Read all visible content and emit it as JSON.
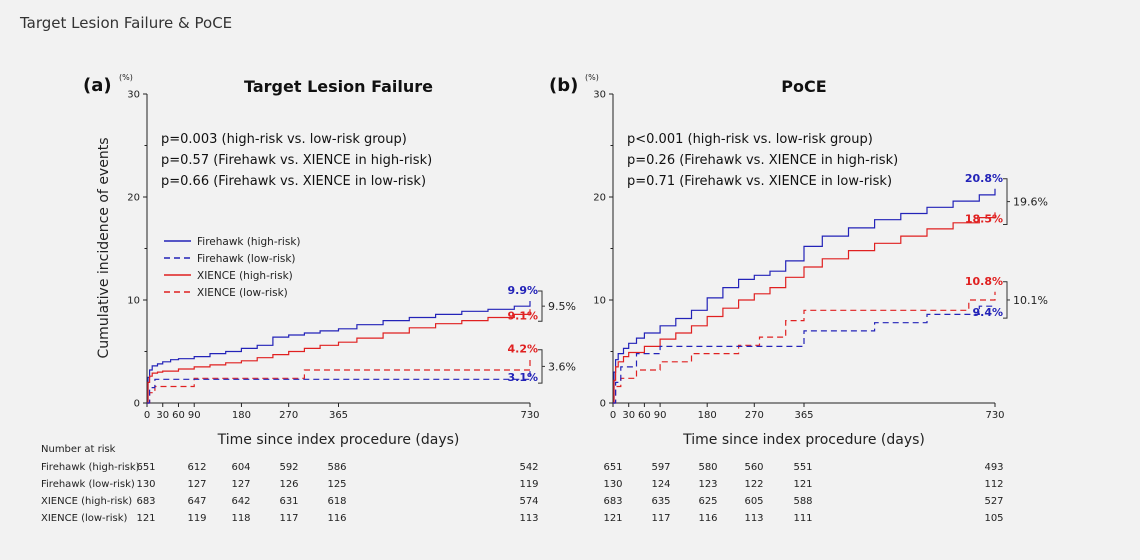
{
  "page_title": "Target Lesion Failure & PoCE",
  "colors": {
    "blue": "#2323b8",
    "red": "#e02020",
    "axis": "#222222"
  },
  "shared": {
    "xlabel": "Time since index procedure (days)",
    "ylabel": "Cumulative incidence of events",
    "yunit": "(%)",
    "x_ticks": [
      0,
      30,
      60,
      90,
      180,
      270,
      365,
      730
    ],
    "y_ticks": [
      0,
      10,
      20,
      30
    ],
    "legend": [
      {
        "name": "Firehawk (high-risk)",
        "color": "#2323b8",
        "dash": false
      },
      {
        "name": "Firehawk (low-risk)",
        "color": "#2323b8",
        "dash": true
      },
      {
        "name": "XIENCE (high-risk)",
        "color": "#e02020",
        "dash": false
      },
      {
        "name": "XIENCE (low-risk)",
        "color": "#e02020",
        "dash": true
      }
    ]
  },
  "chart_data": [
    {
      "type": "line",
      "panel": "(a)",
      "title": "Target Lesion Failure",
      "xlim": [
        0,
        730
      ],
      "ylim": [
        0,
        30
      ],
      "pvalues": [
        "p=0.003 (high-risk vs. low-risk group)",
        "p=0.57 (Firehawk vs. XIENCE in high-risk)",
        "p=0.66 (Firehawk vs. XIENCE in low-risk)"
      ],
      "series": [
        {
          "name": "Firehawk (high-risk)",
          "color": "#2323b8",
          "dash": false,
          "x": [
            0,
            2,
            5,
            10,
            20,
            30,
            45,
            60,
            90,
            120,
            150,
            180,
            210,
            240,
            270,
            300,
            330,
            365,
            400,
            450,
            500,
            550,
            600,
            650,
            700,
            730
          ],
          "y": [
            0,
            2.5,
            3.2,
            3.6,
            3.8,
            4.0,
            4.2,
            4.3,
            4.5,
            4.8,
            5.0,
            5.3,
            5.6,
            6.4,
            6.6,
            6.8,
            7.0,
            7.2,
            7.6,
            8.0,
            8.3,
            8.6,
            8.9,
            9.1,
            9.4,
            9.9
          ]
        },
        {
          "name": "XIENCE (high-risk)",
          "color": "#e02020",
          "dash": false,
          "x": [
            0,
            2,
            5,
            10,
            20,
            30,
            60,
            90,
            120,
            150,
            180,
            210,
            240,
            270,
            300,
            330,
            365,
            400,
            450,
            500,
            550,
            600,
            650,
            700,
            730
          ],
          "y": [
            0,
            2.0,
            2.6,
            2.9,
            3.0,
            3.1,
            3.3,
            3.5,
            3.7,
            3.9,
            4.1,
            4.4,
            4.7,
            5.0,
            5.3,
            5.6,
            5.9,
            6.3,
            6.8,
            7.3,
            7.7,
            8.0,
            8.3,
            8.6,
            9.1
          ]
        },
        {
          "name": "XIENCE (low-risk)",
          "color": "#e02020",
          "dash": true,
          "x": [
            0,
            5,
            15,
            60,
            90,
            150,
            270,
            300,
            500,
            700,
            730
          ],
          "y": [
            0,
            1.0,
            1.6,
            1.6,
            2.4,
            2.4,
            2.4,
            3.2,
            3.2,
            3.2,
            4.2
          ]
        },
        {
          "name": "Firehawk (low-risk)",
          "color": "#2323b8",
          "dash": true,
          "x": [
            0,
            5,
            15,
            90,
            180,
            270,
            700,
            730
          ],
          "y": [
            0,
            1.5,
            2.3,
            2.3,
            2.3,
            2.3,
            2.3,
            3.1
          ]
        }
      ],
      "end_labels": [
        {
          "text": "9.9%",
          "y": 9.9,
          "color": "#2323b8"
        },
        {
          "text": "9.1%",
          "y": 9.1,
          "color": "#e02020"
        },
        {
          "text": "4.2%",
          "y": 4.2,
          "color": "#e02020"
        },
        {
          "text": "3.1%",
          "y": 3.1,
          "color": "#2323b8"
        }
      ],
      "brackets": [
        {
          "text": "9.5%",
          "y_top": 9.9,
          "y_bottom": 9.1
        },
        {
          "text": "3.6%",
          "y_top": 4.2,
          "y_bottom": 3.1
        }
      ],
      "risk_table": {
        "header": "Number at risk",
        "times": [
          0,
          90,
          180,
          270,
          365,
          730
        ],
        "rows": [
          {
            "label": "Firehawk (high-risk)",
            "values": [
              "651",
              "612",
              "604",
              "592",
              "586",
              "542"
            ]
          },
          {
            "label": "Firehawk (low-risk)",
            "values": [
              "130",
              "127",
              "127",
              "126",
              "125",
              "119"
            ]
          },
          {
            "label": "XIENCE (high-risk)",
            "values": [
              "683",
              "647",
              "642",
              "631",
              "618",
              "574"
            ]
          },
          {
            "label": "XIENCE (low-risk)",
            "values": [
              "121",
              "119",
              "118",
              "117",
              "116",
              "113"
            ]
          }
        ]
      }
    },
    {
      "type": "line",
      "panel": "(b)",
      "title": "PoCE",
      "xlim": [
        0,
        730
      ],
      "ylim": [
        0,
        30
      ],
      "pvalues": [
        "p<0.001 (high-risk vs. low-risk group)",
        "p=0.26 (Firehawk vs. XIENCE in high-risk)",
        "p=0.71 (Firehawk vs. XIENCE in low-risk)"
      ],
      "series": [
        {
          "name": "Firehawk (high-risk)",
          "color": "#2323b8",
          "dash": false,
          "x": [
            0,
            2,
            5,
            10,
            20,
            30,
            45,
            60,
            90,
            120,
            150,
            180,
            210,
            240,
            270,
            300,
            330,
            365,
            400,
            450,
            500,
            550,
            600,
            650,
            700,
            730
          ],
          "y": [
            0,
            3.0,
            4.2,
            4.8,
            5.3,
            5.8,
            6.3,
            6.8,
            7.5,
            8.2,
            9.0,
            10.2,
            11.2,
            12.0,
            12.4,
            12.8,
            13.8,
            15.2,
            16.2,
            17.0,
            17.8,
            18.4,
            19.0,
            19.6,
            20.2,
            20.8
          ]
        },
        {
          "name": "XIENCE (high-risk)",
          "color": "#e02020",
          "dash": false,
          "x": [
            0,
            2,
            5,
            10,
            20,
            30,
            60,
            90,
            120,
            150,
            180,
            210,
            240,
            270,
            300,
            330,
            365,
            400,
            450,
            500,
            550,
            600,
            650,
            700,
            730
          ],
          "y": [
            0,
            2.2,
            3.5,
            4.0,
            4.5,
            4.9,
            5.5,
            6.2,
            6.8,
            7.5,
            8.4,
            9.2,
            10.0,
            10.6,
            11.2,
            12.2,
            13.2,
            14.0,
            14.8,
            15.5,
            16.2,
            16.9,
            17.5,
            18.0,
            18.5
          ]
        },
        {
          "name": "XIENCE (low-risk)",
          "color": "#e02020",
          "dash": true,
          "x": [
            0,
            5,
            15,
            45,
            90,
            150,
            240,
            280,
            330,
            365,
            500,
            680,
            730
          ],
          "y": [
            0,
            1.6,
            2.4,
            3.2,
            4.0,
            4.8,
            5.6,
            6.4,
            8.0,
            9.0,
            9.0,
            10.0,
            10.8
          ]
        },
        {
          "name": "Firehawk (low-risk)",
          "color": "#2323b8",
          "dash": true,
          "x": [
            0,
            5,
            15,
            45,
            90,
            180,
            300,
            365,
            500,
            600,
            700,
            730
          ],
          "y": [
            0,
            2.0,
            3.5,
            4.8,
            5.5,
            5.5,
            5.5,
            7.0,
            7.8,
            8.6,
            9.4,
            9.4
          ]
        }
      ],
      "end_labels": [
        {
          "text": "20.8%",
          "y": 20.8,
          "color": "#2323b8"
        },
        {
          "text": "18.5%",
          "y": 18.5,
          "color": "#e02020"
        },
        {
          "text": "10.8%",
          "y": 10.8,
          "color": "#e02020"
        },
        {
          "text": "9.4%",
          "y": 9.4,
          "color": "#2323b8"
        }
      ],
      "brackets": [
        {
          "text": "19.6%",
          "y_top": 20.8,
          "y_bottom": 18.5
        },
        {
          "text": "10.1%",
          "y_top": 10.8,
          "y_bottom": 9.4
        }
      ],
      "risk_table": {
        "header": "",
        "times": [
          0,
          90,
          180,
          270,
          365,
          730
        ],
        "rows": [
          {
            "label": "",
            "values": [
              "651",
              "597",
              "580",
              "560",
              "551",
              "493"
            ]
          },
          {
            "label": "",
            "values": [
              "130",
              "124",
              "123",
              "122",
              "121",
              "112"
            ]
          },
          {
            "label": "",
            "values": [
              "683",
              "635",
              "625",
              "605",
              "588",
              "527"
            ]
          },
          {
            "label": "",
            "values": [
              "121",
              "117",
              "116",
              "113",
              "111",
              "105"
            ]
          }
        ]
      }
    }
  ]
}
